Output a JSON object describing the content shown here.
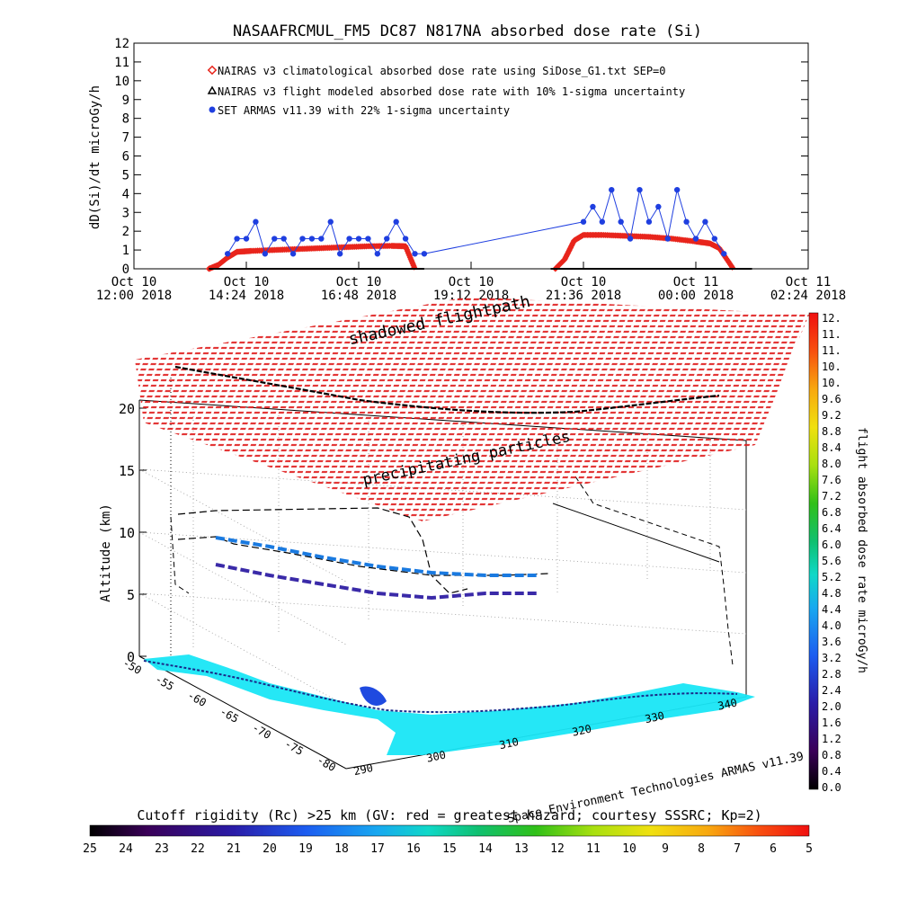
{
  "chart_data": [
    {
      "type": "scatter",
      "title": "NASAAFRCMUL_FM5 DC87 N817NA absorbed dose rate (Si)",
      "ylabel": "dD(Si)/dt microGy/h",
      "ylim": [
        0,
        12
      ],
      "yticks": [
        "0",
        "1",
        "2",
        "3",
        "4",
        "5",
        "6",
        "7",
        "8",
        "9",
        "10",
        "11",
        "12"
      ],
      "xticks": [
        {
          "line1": "Oct 10",
          "line2": "12:00 2018"
        },
        {
          "line1": "Oct 10",
          "line2": "14:24 2018"
        },
        {
          "line1": "Oct 10",
          "line2": "16:48 2018"
        },
        {
          "line1": "Oct 10",
          "line2": "19:12 2018"
        },
        {
          "line1": "Oct 10",
          "line2": "21:36 2018"
        },
        {
          "line1": "Oct 11",
          "line2": "00:00 2018"
        },
        {
          "line1": "Oct 11",
          "line2": "02:24 2018"
        }
      ],
      "xlim_hours": [
        12.0,
        26.4
      ],
      "legend": [
        {
          "marker": "diamond",
          "color": "#e8251c",
          "label": "NAIRAS v3 climatological absorbed dose rate using SiDose_G1.txt SEP=0"
        },
        {
          "marker": "triangle",
          "color": "#000000",
          "label": "NAIRAS v3 flight modeled absorbed dose rate with 10% 1-sigma uncertainty"
        },
        {
          "marker": "dot",
          "color": "#1f3fe0",
          "label": "SET ARMAS v11.39 with 22% 1-sigma uncertainty"
        }
      ],
      "series": [
        {
          "name": "NAIRAS v3 climatological absorbed dose rate using SiDose_G1.txt SEP=0",
          "x": [
            13.6,
            13.8,
            14.0,
            14.2,
            14.5,
            15.0,
            15.5,
            16.0,
            16.5,
            17.0,
            17.5,
            17.8,
            18.0,
            21.0,
            21.2,
            21.4,
            21.6,
            22.0,
            22.5,
            23.0,
            23.5,
            24.0,
            24.3,
            24.5,
            24.8
          ],
          "values": [
            0,
            0.2,
            0.6,
            0.9,
            0.95,
            1.0,
            1.05,
            1.1,
            1.15,
            1.2,
            1.22,
            1.2,
            0,
            0,
            0.5,
            1.5,
            1.8,
            1.8,
            1.75,
            1.7,
            1.6,
            1.45,
            1.35,
            1.1,
            0
          ]
        },
        {
          "name": "NAIRAS v3 flight modeled absorbed dose rate with 10% 1-sigma uncertainty",
          "x": [
            13.6,
            18.2,
            20.9,
            25.2
          ],
          "values": [
            0,
            0,
            0,
            0
          ]
        },
        {
          "name": "SET ARMAS v11.39 with 22% 1-sigma uncertainty",
          "x": [
            14.0,
            14.2,
            14.4,
            14.6,
            14.8,
            15.0,
            15.2,
            15.4,
            15.6,
            15.8,
            16.0,
            16.2,
            16.4,
            16.6,
            16.8,
            17.0,
            17.2,
            17.4,
            17.6,
            17.8,
            18.0,
            18.2,
            21.6,
            21.8,
            22.0,
            22.2,
            22.4,
            22.6,
            22.8,
            23.0,
            23.2,
            23.4,
            23.6,
            23.8,
            24.0,
            24.2,
            24.4,
            24.6
          ],
          "values": [
            0.8,
            1.6,
            1.6,
            2.5,
            0.8,
            1.6,
            1.6,
            0.8,
            1.6,
            1.6,
            1.6,
            2.5,
            0.8,
            1.6,
            1.6,
            1.6,
            0.8,
            1.6,
            2.5,
            1.6,
            0.8,
            0.8,
            2.5,
            3.3,
            2.5,
            4.2,
            2.5,
            1.6,
            4.2,
            2.5,
            3.3,
            1.6,
            4.2,
            2.5,
            1.6,
            2.5,
            1.6,
            0.8
          ]
        }
      ]
    },
    {
      "type": "scatter",
      "xlabel": "",
      "ylabel": "Altitude (km)",
      "zticks": [
        "0",
        "5",
        "10",
        "15",
        "20"
      ],
      "lon_ticks": [
        "290",
        "300",
        "310",
        "320",
        "330",
        "340"
      ],
      "lat_ticks": [
        "-50",
        "-55",
        "-60",
        "-65",
        "-70",
        "-75",
        "-80"
      ],
      "labels": {
        "shadowed": "shadowed flightpath",
        "precip": "precipitating particles",
        "credit": "Space Environment Technologies ARMAS v11.39"
      }
    },
    {
      "type": "heatmap",
      "colorbar_label": "flight absorbed dose rate microGy/h",
      "colorbar_ticks": [
        "12.",
        "11.",
        "11.",
        "10.",
        "10.",
        "9.6",
        "9.2",
        "8.8",
        "8.4",
        "8.0",
        "7.6",
        "7.2",
        "6.8",
        "6.4",
        "6.0",
        "5.6",
        "5.2",
        "4.8",
        "4.4",
        "4.0",
        "3.6",
        "3.2",
        "2.8",
        "2.4",
        "2.0",
        "1.6",
        "1.2",
        "0.8",
        "0.4",
        "0.0"
      ]
    },
    {
      "type": "heatmap",
      "label": "Cutoff rigidity (Rc) >25 km (GV: red = greatest hazard; courtesy SSSRC; Kp=2)",
      "ticks": [
        "25",
        "24",
        "23",
        "22",
        "21",
        "20",
        "19",
        "18",
        "17",
        "16",
        "15",
        "14",
        "13",
        "12",
        "11",
        "10",
        "9",
        "8",
        "7",
        "6",
        "5"
      ]
    }
  ]
}
